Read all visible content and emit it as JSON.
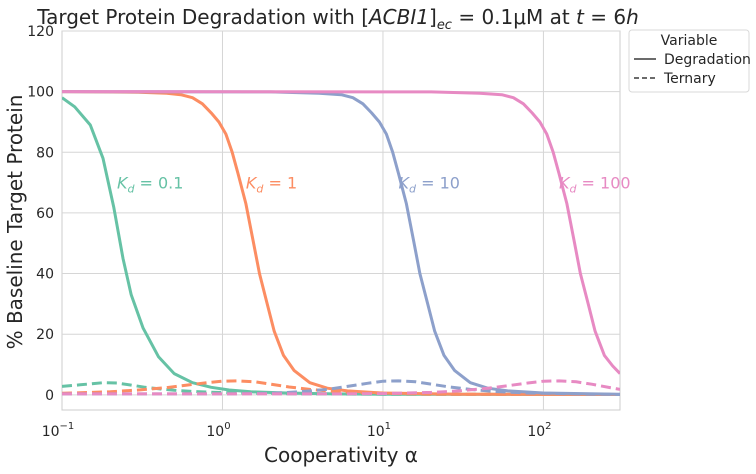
{
  "chart_data": {
    "type": "line",
    "title_parts": {
      "prefix": "Target Protein Degradation with [",
      "species": "ACBI1",
      "bracket_close": "]",
      "species_sub": "ec",
      "middle": " = 0.1μM at ",
      "t_var": "t",
      "suffix": " = 6",
      "h_var": "h"
    },
    "xlabel": "Cooperativity α",
    "ylabel": "% Baseline Target Protein",
    "x_scale": "log",
    "xlim": [
      0.1,
      300
    ],
    "ylim": [
      -5,
      120
    ],
    "yticks": [
      0,
      20,
      40,
      60,
      80,
      100,
      120
    ],
    "xtick_labels": [
      {
        "value": 0.1,
        "base": "10",
        "exp": "−1"
      },
      {
        "value": 1,
        "base": "10",
        "exp": "0"
      },
      {
        "value": 10,
        "base": "10",
        "exp": "1"
      },
      {
        "value": 100,
        "base": "10",
        "exp": "2"
      }
    ],
    "grid": true,
    "legend": {
      "title": "Variable",
      "placement": "outside-top-right",
      "entries": [
        {
          "label": "Degradation",
          "style": "solid"
        },
        {
          "label": "Ternary",
          "style": "dashed"
        }
      ]
    },
    "series": [
      {
        "color": "#66c2a5",
        "annotation": {
          "sub": "d",
          "value": " = 0.1",
          "x": 0.22,
          "y": 70
        },
        "degradation": {
          "x": [
            0.1,
            0.12,
            0.15,
            0.18,
            0.21,
            0.24,
            0.27,
            0.32,
            0.4,
            0.5,
            0.65,
            0.85,
            1.1,
            1.5,
            2.5,
            5,
            10,
            100,
            300
          ],
          "y": [
            98,
            95,
            89,
            78,
            62,
            45,
            33,
            22,
            12.5,
            7,
            4,
            2.5,
            1.6,
            1.0,
            0.6,
            0.3,
            0.2,
            0.1,
            0.1
          ]
        },
        "ternary": {
          "x": [
            0.1,
            0.13,
            0.18,
            0.22,
            0.27,
            0.33,
            0.4,
            0.5,
            0.65,
            0.9,
            1.5,
            3,
            10,
            100,
            300
          ],
          "y": [
            2.8,
            3.3,
            4.0,
            3.9,
            3.2,
            2.5,
            2.0,
            1.5,
            1.1,
            0.8,
            0.5,
            0.3,
            0.2,
            0.1,
            0.1
          ]
        }
      },
      {
        "color": "#fc8d62",
        "annotation": {
          "sub": "d",
          "value": " = 1",
          "x": 1.4,
          "y": 70
        },
        "degradation": {
          "x": [
            0.1,
            0.3,
            0.45,
            0.55,
            0.65,
            0.75,
            0.85,
            0.95,
            1.05,
            1.15,
            1.25,
            1.4,
            1.55,
            1.7,
            1.9,
            2.1,
            2.4,
            2.8,
            3.5,
            4.5,
            6,
            10,
            30,
            300
          ],
          "y": [
            100,
            99.8,
            99.5,
            99,
            98,
            96,
            93,
            90,
            86,
            80,
            73,
            63,
            51,
            40,
            30,
            21,
            13,
            8,
            4,
            2.2,
            1.3,
            0.6,
            0.2,
            0.1
          ]
        },
        "ternary": {
          "x": [
            0.1,
            0.2,
            0.3,
            0.45,
            0.6,
            0.8,
            1.0,
            1.25,
            1.6,
            2.0,
            2.6,
            3.5,
            5,
            8,
            20,
            300
          ],
          "y": [
            0.5,
            1.0,
            1.6,
            2.4,
            3.2,
            4.0,
            4.5,
            4.6,
            4.3,
            3.5,
            2.6,
            1.8,
            1.1,
            0.6,
            0.2,
            0.1
          ]
        }
      },
      {
        "color": "#8da0cb",
        "annotation": {
          "sub": "d",
          "value": " = 10",
          "x": 12.5,
          "y": 70
        },
        "degradation": {
          "x": [
            0.1,
            2,
            4,
            5.5,
            6.5,
            7.5,
            8.5,
            9.5,
            10.5,
            11.5,
            12.5,
            14,
            15.5,
            17,
            19,
            21,
            24,
            28,
            35,
            45,
            60,
            100,
            300
          ],
          "y": [
            100,
            99.9,
            99.5,
            99,
            98,
            96,
            93,
            90,
            86,
            80,
            73,
            63,
            51,
            40,
            30,
            21,
            13,
            8,
            4,
            2.2,
            1.3,
            0.6,
            0.2
          ]
        },
        "ternary": {
          "x": [
            0.1,
            0.5,
            1,
            2,
            3,
            4.5,
            6,
            8,
            10,
            12.5,
            16,
            20,
            26,
            35,
            50,
            80,
            200,
            300
          ],
          "y": [
            0.3,
            0.3,
            0.3,
            0.5,
            1.0,
            1.8,
            2.8,
            3.8,
            4.5,
            4.6,
            4.3,
            3.5,
            2.6,
            1.8,
            1.1,
            0.6,
            0.2,
            0.1
          ]
        }
      },
      {
        "color": "#e78ac3",
        "annotation": {
          "sub": "d",
          "value": " = 100",
          "x": 125,
          "y": 70
        },
        "degradation": {
          "x": [
            0.1,
            20,
            40,
            55,
            65,
            75,
            85,
            95,
            105,
            115,
            125,
            140,
            155,
            170,
            190,
            210,
            240,
            270,
            300
          ],
          "y": [
            100,
            99.9,
            99.5,
            99,
            98,
            96,
            93,
            90,
            86,
            80,
            73,
            63,
            51,
            40,
            30,
            21,
            13,
            9.5,
            7
          ]
        },
        "ternary": {
          "x": [
            0.1,
            1,
            5,
            10,
            20,
            30,
            45,
            60,
            80,
            100,
            125,
            160,
            200,
            260,
            300
          ],
          "y": [
            0.3,
            0.3,
            0.3,
            0.4,
            0.8,
            1.3,
            2.2,
            3.0,
            3.9,
            4.5,
            4.6,
            4.3,
            3.5,
            2.4,
            1.8
          ]
        }
      }
    ]
  }
}
